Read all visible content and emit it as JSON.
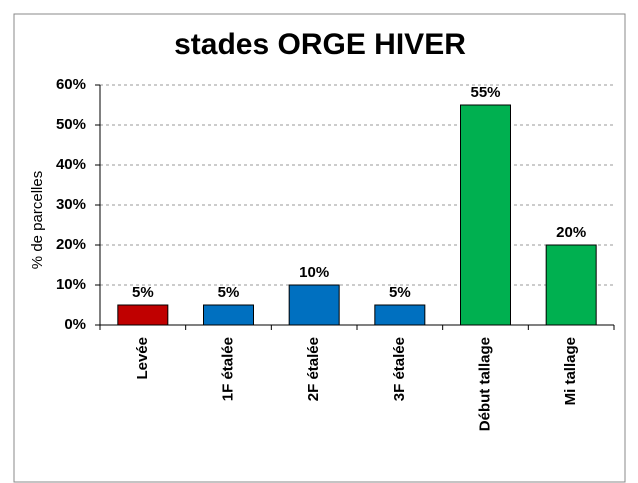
{
  "chart_data": {
    "type": "bar",
    "title": "stades ORGE HIVER",
    "y_label": "% de parcelles",
    "categories": [
      "Levée",
      "1F étalée",
      "2F étalée",
      "3F étalée",
      "Début tallage",
      "Mi tallage"
    ],
    "values": [
      5,
      5,
      10,
      5,
      55,
      20
    ],
    "value_labels": [
      "5%",
      "5%",
      "10%",
      "5%",
      "55%",
      "20%"
    ],
    "colors": [
      "#c00000",
      "#0070c0",
      "#0070c0",
      "#0070c0",
      "#00b050",
      "#00b050"
    ],
    "ylim": [
      0,
      60
    ],
    "yticks": [
      {
        "value": 0,
        "label": "0%"
      },
      {
        "value": 10,
        "label": "10%"
      },
      {
        "value": 20,
        "label": "20%"
      },
      {
        "value": 30,
        "label": "30%"
      },
      {
        "value": 40,
        "label": "40%"
      },
      {
        "value": 50,
        "label": "50%"
      },
      {
        "value": 60,
        "label": "60%"
      }
    ],
    "grid": true
  }
}
